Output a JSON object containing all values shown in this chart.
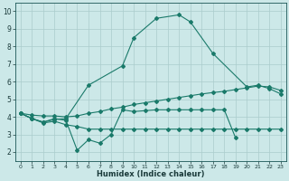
{
  "xlabel": "Humidex (Indice chaleur)",
  "bg_color": "#cce8e8",
  "grid_color": "#aacccc",
  "line_color": "#1a7a6a",
  "xlim": [
    -0.5,
    23.5
  ],
  "ylim": [
    1.5,
    10.5
  ],
  "xticks": [
    0,
    1,
    2,
    3,
    4,
    5,
    6,
    7,
    8,
    9,
    10,
    11,
    12,
    13,
    14,
    15,
    16,
    17,
    18,
    19,
    20,
    21,
    22,
    23
  ],
  "yticks": [
    2,
    3,
    4,
    5,
    6,
    7,
    8,
    9,
    10
  ],
  "line1_x": [
    0,
    1,
    2,
    3,
    4,
    5,
    6,
    7,
    8,
    9,
    10,
    11,
    12,
    13,
    14,
    15,
    16,
    17,
    18,
    19
  ],
  "line1_y": [
    4.2,
    3.9,
    3.7,
    3.9,
    3.8,
    2.1,
    2.7,
    2.5,
    3.0,
    4.4,
    4.3,
    4.35,
    4.4,
    4.4,
    4.4,
    4.4,
    4.4,
    4.4,
    4.4,
    2.8
  ],
  "line2_x": [
    0,
    1,
    2,
    3,
    4,
    5,
    6,
    7,
    8,
    9,
    10,
    11,
    12,
    13,
    14,
    15,
    16,
    17,
    18,
    19,
    20,
    21,
    22,
    23
  ],
  "line2_y": [
    4.2,
    3.9,
    3.65,
    3.75,
    3.55,
    3.45,
    3.3,
    3.3,
    3.3,
    3.3,
    3.3,
    3.3,
    3.3,
    3.3,
    3.3,
    3.3,
    3.3,
    3.3,
    3.3,
    3.3,
    3.3,
    3.3,
    3.3,
    3.3
  ],
  "line3_x": [
    0,
    1,
    2,
    3,
    4,
    5,
    6,
    7,
    8,
    9,
    10,
    11,
    12,
    13,
    14,
    15,
    16,
    17,
    18,
    19,
    20,
    21,
    22,
    23
  ],
  "line3_y": [
    4.2,
    4.1,
    4.05,
    4.05,
    4.0,
    4.05,
    4.2,
    4.3,
    4.45,
    4.55,
    4.7,
    4.8,
    4.9,
    5.0,
    5.1,
    5.2,
    5.3,
    5.38,
    5.45,
    5.55,
    5.65,
    5.75,
    5.7,
    5.5
  ],
  "line4_x": [
    0,
    1,
    2,
    3,
    4,
    6,
    9,
    10,
    12,
    14,
    15,
    17,
    20,
    21,
    22,
    23
  ],
  "line4_y": [
    4.2,
    3.9,
    3.7,
    3.85,
    3.9,
    5.8,
    6.9,
    8.5,
    9.6,
    9.8,
    9.4,
    7.6,
    5.7,
    5.8,
    5.6,
    5.3
  ]
}
